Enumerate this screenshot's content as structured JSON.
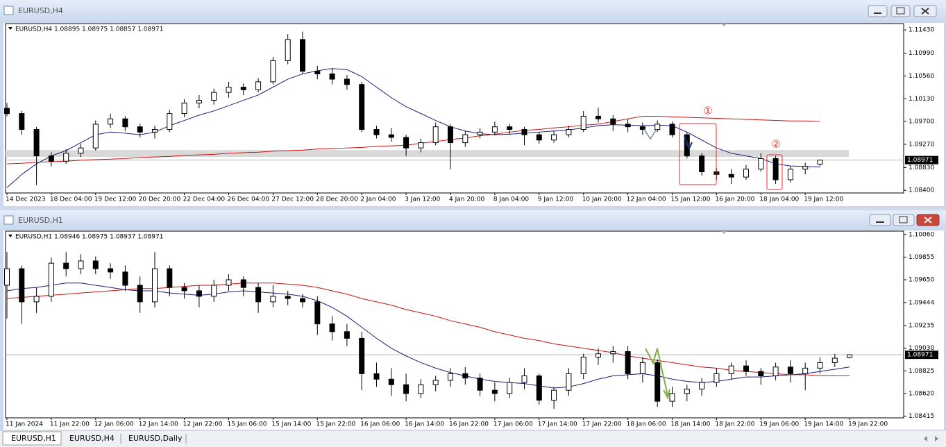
{
  "windows": [
    {
      "title": "EURUSD,H4"
    },
    {
      "title": "EURUSD,H1"
    }
  ],
  "tabs": [
    "EURUSD,H1",
    "EURUSD,H4",
    "EURUSD,Daily"
  ],
  "chart_data": [
    {
      "type": "candlestick",
      "title": "EURUSD,H4  1.08895 1.08975 1.08857 1.08971",
      "categories": [
        "14 Dec 2023",
        null,
        null,
        "18 Dec 04:00",
        null,
        null,
        "19 Dec 12:00",
        null,
        null,
        "20 Dec 20:00",
        null,
        null,
        "22 Dec 04:00",
        null,
        null,
        "26 Dec 04:00",
        null,
        null,
        "27 Dec 12:00",
        null,
        null,
        "28 Dec 20:00",
        null,
        null,
        "2 Jan 04:00",
        null,
        null,
        "3 Jan 12:00",
        null,
        null,
        "4 Jan 20:00",
        null,
        null,
        "8 Jan 04:00",
        null,
        null,
        "9 Jan 12:00",
        null,
        null,
        "10 Jan 20:00",
        null,
        null,
        "12 Jan 04:00",
        null,
        null,
        "15 Jan 12:00",
        null,
        null,
        "16 Jan 20:00",
        null,
        null,
        "18 Jan 04:00",
        null,
        null,
        "19 Jan 12:00",
        null
      ],
      "ohlc": [
        [
          1.0995,
          1.1005,
          1.098,
          1.0985
        ],
        [
          1.0985,
          1.099,
          1.0945,
          1.0955
        ],
        [
          1.0955,
          1.096,
          1.085,
          1.0905
        ],
        [
          1.0905,
          1.0912,
          1.0885,
          1.0895
        ],
        [
          1.0895,
          1.0918,
          1.089,
          1.091
        ],
        [
          1.091,
          1.0928,
          1.0903,
          1.092
        ],
        [
          1.092,
          1.0972,
          1.0915,
          1.0965
        ],
        [
          1.0965,
          1.0985,
          1.0958,
          1.0975
        ],
        [
          1.0975,
          1.098,
          1.0952,
          1.096
        ],
        [
          1.096,
          1.0966,
          1.094,
          1.095
        ],
        [
          1.095,
          1.0962,
          1.0938,
          1.0955
        ],
        [
          1.0955,
          1.0992,
          1.095,
          1.0985
        ],
        [
          1.0985,
          1.1012,
          1.0978,
          1.1005
        ],
        [
          1.1005,
          1.102,
          1.0995,
          1.101
        ],
        [
          1.101,
          1.1032,
          1.1002,
          1.1025
        ],
        [
          1.1025,
          1.1045,
          1.1015,
          1.1035
        ],
        [
          1.1035,
          1.1042,
          1.102,
          1.103
        ],
        [
          1.103,
          1.1052,
          1.1025,
          1.1045
        ],
        [
          1.1045,
          1.1092,
          1.104,
          1.1085
        ],
        [
          1.1085,
          1.1135,
          1.1078,
          1.1125
        ],
        [
          1.1125,
          1.114,
          1.106,
          1.1065
        ],
        [
          1.1065,
          1.1075,
          1.105,
          1.106
        ],
        [
          1.106,
          1.107,
          1.104,
          1.105
        ],
        [
          1.105,
          1.1058,
          1.103,
          1.104
        ],
        [
          1.104,
          1.1045,
          1.095,
          1.0955
        ],
        [
          1.0955,
          1.0962,
          1.0938,
          1.0945
        ],
        [
          1.0945,
          1.0958,
          1.0932,
          1.094
        ],
        [
          1.094,
          1.0945,
          1.0905,
          1.092
        ],
        [
          1.092,
          1.0938,
          1.0912,
          1.093
        ],
        [
          1.093,
          1.0968,
          1.0925,
          1.096
        ],
        [
          1.096,
          1.0965,
          1.088,
          1.093
        ],
        [
          1.093,
          1.0952,
          1.0922,
          1.0945
        ],
        [
          1.0945,
          1.0958,
          1.0938,
          1.095
        ],
        [
          1.095,
          1.097,
          1.0944,
          1.096
        ],
        [
          1.096,
          1.0965,
          1.0946,
          1.0955
        ],
        [
          1.0955,
          1.096,
          1.0925,
          1.0945
        ],
        [
          1.0945,
          1.095,
          1.0928,
          1.0935
        ],
        [
          1.0935,
          1.0952,
          1.093,
          1.0945
        ],
        [
          1.0945,
          1.0962,
          1.094,
          1.0955
        ],
        [
          1.0955,
          1.099,
          1.095,
          1.098
        ],
        [
          1.098,
          1.0996,
          1.0968,
          1.0975
        ],
        [
          1.0975,
          1.0982,
          1.0952,
          1.0965
        ],
        [
          1.0965,
          1.0975,
          1.095,
          1.096
        ],
        [
          1.096,
          1.0968,
          1.0945,
          1.0955
        ],
        [
          1.0955,
          1.0972,
          1.095,
          1.0965
        ],
        [
          1.0965,
          1.097,
          1.094,
          1.0945
        ],
        [
          1.0945,
          1.095,
          1.09,
          1.0905
        ],
        [
          1.0905,
          1.091,
          1.0868,
          1.0875
        ],
        [
          1.0875,
          1.0882,
          1.086,
          1.087
        ],
        [
          1.087,
          1.088,
          1.0852,
          1.0865
        ],
        [
          1.0865,
          1.0888,
          1.086,
          1.088
        ],
        [
          1.088,
          1.091,
          1.0875,
          1.09
        ],
        [
          1.09,
          1.0905,
          1.0852,
          1.086
        ],
        [
          1.086,
          1.0886,
          1.0855,
          1.088
        ],
        [
          1.088,
          1.0892,
          1.087,
          1.0885
        ],
        [
          1.08895,
          1.08975,
          1.08857,
          1.08971
        ]
      ],
      "ma_lines": [
        {
          "color": "#1c1c7a",
          "values": [
            1.0845,
            1.087,
            1.089,
            1.0905,
            1.0915,
            1.093,
            1.0945,
            1.095,
            1.0948,
            1.0945,
            1.095,
            1.0962,
            1.0972,
            1.0982,
            1.099,
            1.1,
            1.101,
            1.102,
            1.1035,
            1.105,
            1.106,
            1.1066,
            1.107,
            1.1068,
            1.1055,
            1.1035,
            1.1015,
            1.0998,
            1.0985,
            1.0972,
            1.096,
            1.0952,
            1.0947,
            1.0945,
            1.0946,
            1.0948,
            1.095,
            1.0952,
            1.0954,
            1.0958,
            1.0962,
            1.0964,
            1.0963,
            1.0962,
            1.0963,
            1.0962,
            1.095,
            1.0935,
            1.092,
            1.091,
            1.0905,
            1.09,
            1.089,
            1.0886,
            1.0885,
            1.0884
          ]
        },
        {
          "color": "#d01010",
          "values": [
            1.089,
            1.0891,
            1.0893,
            1.0894,
            1.0895,
            1.0897,
            1.0898,
            1.0899,
            1.09,
            1.0902,
            1.0903,
            1.0904,
            1.0906,
            1.0907,
            1.0908,
            1.091,
            1.0911,
            1.0912,
            1.0914,
            1.0915,
            1.0916,
            1.0918,
            1.0919,
            1.092,
            1.0921,
            1.0923,
            1.0924,
            1.0925,
            1.0929,
            1.0932,
            1.0936,
            1.0939,
            1.0943,
            1.0946,
            1.095,
            1.0953,
            1.0955,
            1.0958,
            1.096,
            1.0963,
            1.0965,
            1.097,
            1.0975,
            1.098,
            1.098,
            1.0979,
            1.0978,
            1.0977,
            1.0976,
            1.0975,
            1.0974,
            1.0973,
            1.0972,
            1.0971,
            1.0971,
            1.097
          ]
        }
      ],
      "zone": [
        1.0903,
        1.0916
      ],
      "current_price": {
        "value": 1.08971,
        "label": "1.08971"
      },
      "annotations": [
        "①",
        "②"
      ],
      "ylim": [
        1.0835,
        1.1155
      ],
      "yticks": [
        {
          "value": 1.1143,
          "label": "1.11430"
        },
        {
          "value": 1.1099,
          "label": "1.10990"
        },
        {
          "value": 1.1056,
          "label": "1.10560"
        },
        {
          "value": 1.1013,
          "label": "1.10130"
        },
        {
          "value": 1.097,
          "label": "1.09700"
        },
        {
          "value": 1.0927,
          "label": "1.09270"
        },
        {
          "value": 1.0883,
          "label": "1.08830"
        },
        {
          "value": 1.084,
          "label": "1.08400"
        }
      ]
    },
    {
      "type": "candlestick",
      "title": "EURUSD,H1  1.08946 1.08975 1.08937 1.08971",
      "categories": [
        "11 Jan 2024",
        null,
        null,
        "11 Jan 22:00",
        null,
        null,
        "12 Jan 06:00",
        null,
        null,
        "12 Jan 14:00",
        null,
        null,
        "12 Jan 22:00",
        null,
        null,
        "15 Jan 06:00",
        null,
        null,
        "15 Jan 14:00",
        null,
        null,
        "15 Jan 22:00",
        null,
        null,
        "16 Jan 06:00",
        null,
        null,
        "16 Jan 14:00",
        null,
        null,
        "16 Jan 22:00",
        null,
        null,
        "17 Jan 06:00",
        null,
        null,
        "17 Jan 14:00",
        null,
        null,
        "17 Jan 22:00",
        null,
        null,
        "18 Jan 06:00",
        null,
        null,
        "18 Jan 14:00",
        null,
        null,
        "18 Jan 22:00",
        null,
        null,
        "19 Jan 06:00",
        null,
        null,
        "19 Jan 14:00",
        null,
        null,
        "19 Jan 22:00"
      ],
      "ohlc": [
        [
          1.096,
          1.099,
          1.093,
          1.0975
        ],
        [
          1.0975,
          1.0978,
          1.0925,
          1.0945
        ],
        [
          1.0945,
          1.0958,
          1.0935,
          1.095
        ],
        [
          1.095,
          1.0985,
          1.0945,
          1.098
        ],
        [
          1.098,
          1.099,
          1.0968,
          1.0975
        ],
        [
          1.0975,
          1.0988,
          1.097,
          1.0982
        ],
        [
          1.0982,
          1.0986,
          1.097,
          1.0975
        ],
        [
          1.0975,
          1.098,
          1.0966,
          1.0972
        ],
        [
          1.0972,
          1.0978,
          1.0955,
          1.096
        ],
        [
          1.096,
          1.0968,
          1.0935,
          1.0945
        ],
        [
          1.0945,
          1.099,
          1.094,
          1.0975
        ],
        [
          1.0975,
          1.0978,
          1.095,
          1.0958
        ],
        [
          1.0958,
          1.0962,
          1.0948,
          1.0955
        ],
        [
          1.0955,
          1.096,
          1.094,
          1.095
        ],
        [
          1.095,
          1.0965,
          1.0945,
          1.096
        ],
        [
          1.096,
          1.097,
          1.0955,
          1.0965
        ],
        [
          1.0965,
          1.0968,
          1.095,
          1.0958
        ],
        [
          1.0958,
          1.0962,
          1.0935,
          1.0945
        ],
        [
          1.0945,
          1.096,
          1.094,
          1.095
        ],
        [
          1.095,
          1.0955,
          1.0942,
          1.0948
        ],
        [
          1.0948,
          1.0952,
          1.094,
          1.0945
        ],
        [
          1.0945,
          1.095,
          1.0915,
          1.0925
        ],
        [
          1.0925,
          1.0932,
          1.091,
          1.0918
        ],
        [
          1.0918,
          1.0925,
          1.0905,
          1.0912
        ],
        [
          1.0912,
          1.0918,
          1.0865,
          1.088
        ],
        [
          1.088,
          1.089,
          1.0868,
          1.0875
        ],
        [
          1.0875,
          1.0885,
          1.086,
          1.087
        ],
        [
          1.087,
          1.088,
          1.0855,
          1.0862
        ],
        [
          1.0862,
          1.0875,
          1.0858,
          1.087
        ],
        [
          1.087,
          1.0878,
          1.0864,
          1.0874
        ],
        [
          1.0874,
          1.0885,
          1.0868,
          1.088
        ],
        [
          1.088,
          1.0886,
          1.087,
          1.0876
        ],
        [
          1.0876,
          1.088,
          1.086,
          1.0865
        ],
        [
          1.0865,
          1.0872,
          1.0855,
          1.0862
        ],
        [
          1.0862,
          1.0876,
          1.0858,
          1.0872
        ],
        [
          1.0872,
          1.0885,
          1.0866,
          1.0878
        ],
        [
          1.0878,
          1.088,
          1.0852,
          1.0856
        ],
        [
          1.0856,
          1.0868,
          1.0848,
          1.0865
        ],
        [
          1.0865,
          1.0885,
          1.086,
          1.088
        ],
        [
          1.088,
          1.0898,
          1.0875,
          1.0895
        ],
        [
          1.0895,
          1.0903,
          1.0888,
          1.0898
        ],
        [
          1.0898,
          1.0905,
          1.089,
          1.09
        ],
        [
          1.09,
          1.0905,
          1.0875,
          1.088
        ],
        [
          1.088,
          1.0895,
          1.0872,
          1.089
        ],
        [
          1.089,
          1.0893,
          1.085,
          1.0855
        ],
        [
          1.0855,
          1.0868,
          1.085,
          1.0862
        ],
        [
          1.0862,
          1.087,
          1.0855,
          1.0866
        ],
        [
          1.0866,
          1.0876,
          1.086,
          1.0872
        ],
        [
          1.0872,
          1.0885,
          1.0868,
          1.088
        ],
        [
          1.088,
          1.089,
          1.0875,
          1.0887
        ],
        [
          1.0887,
          1.0892,
          1.0878,
          1.0882
        ],
        [
          1.0882,
          1.0885,
          1.087,
          1.0878
        ],
        [
          1.0878,
          1.089,
          1.0874,
          1.0886
        ],
        [
          1.0886,
          1.0892,
          1.0872,
          1.088
        ],
        [
          1.088,
          1.089,
          1.0865,
          1.0885
        ],
        [
          1.0885,
          1.0895,
          1.088,
          1.089
        ],
        [
          1.089,
          1.0898,
          1.0886,
          1.0894
        ],
        [
          1.08946,
          1.08975,
          1.08937,
          1.08971
        ]
      ],
      "ma_lines": [
        {
          "color": "#1c1c7a",
          "values": [
            1.0955,
            1.0957,
            1.0958,
            1.096,
            1.0962,
            1.0962,
            1.096,
            1.0958,
            1.0956,
            1.0955,
            1.0955,
            1.0953,
            1.0952,
            1.0951,
            1.0952,
            1.0954,
            1.0955,
            1.0954,
            1.0953,
            1.0952,
            1.095,
            1.0946,
            1.094,
            1.0932,
            1.0922,
            1.0912,
            1.0903,
            1.0896,
            1.089,
            1.0885,
            1.0881,
            1.0878,
            1.0875,
            1.0873,
            1.0872,
            1.0871,
            1.0869,
            1.0867,
            1.0868,
            1.0871,
            1.0875,
            1.0878,
            1.0879,
            1.088,
            1.0878,
            1.0875,
            1.0873,
            1.0872,
            1.0873,
            1.0875,
            1.0877,
            1.0877,
            1.0878,
            1.0879,
            1.088,
            1.0882,
            1.0884,
            1.0886
          ]
        },
        {
          "color": "#d01010",
          "values": [
            1.0948,
            1.0949,
            1.095,
            1.0951,
            1.0952,
            1.0953,
            1.0954,
            1.0955,
            1.0956,
            1.0957,
            1.0957,
            1.0958,
            1.0959,
            1.096,
            1.096,
            1.0961,
            1.0962,
            1.0962,
            1.0962,
            1.0961,
            1.096,
            1.0958,
            1.0955,
            1.0952,
            1.0948,
            1.0945,
            1.0942,
            1.0938,
            1.0935,
            1.0932,
            1.0928,
            1.0925,
            1.0922,
            1.0918,
            1.0915,
            1.0912,
            1.091,
            1.0907,
            1.0905,
            1.0903,
            1.0901,
            1.0899,
            1.0896,
            1.0894,
            1.0892,
            1.089,
            1.0888,
            1.0886,
            1.0885,
            1.0883,
            1.0882,
            1.0881,
            1.088,
            1.0879,
            1.0879,
            1.0878,
            1.0878,
            1.0878
          ]
        }
      ],
      "current_price": {
        "value": 1.08971,
        "label": "1.08971"
      },
      "ylim": [
        1.084,
        1.1009
      ],
      "yticks": [
        {
          "value": 1.1006,
          "label": "1.10060"
        },
        {
          "value": 1.09855,
          "label": "1.09855"
        },
        {
          "value": 1.0965,
          "label": "1.09650"
        },
        {
          "value": 1.09444,
          "label": "1.09444"
        },
        {
          "value": 1.09235,
          "label": "1.09235"
        },
        {
          "value": 1.0903,
          "label": "1.09030"
        },
        {
          "value": 1.08825,
          "label": "1.08825"
        },
        {
          "value": 1.0862,
          "label": "1.08620"
        },
        {
          "value": 1.08415,
          "label": "1.08415"
        }
      ]
    }
  ]
}
